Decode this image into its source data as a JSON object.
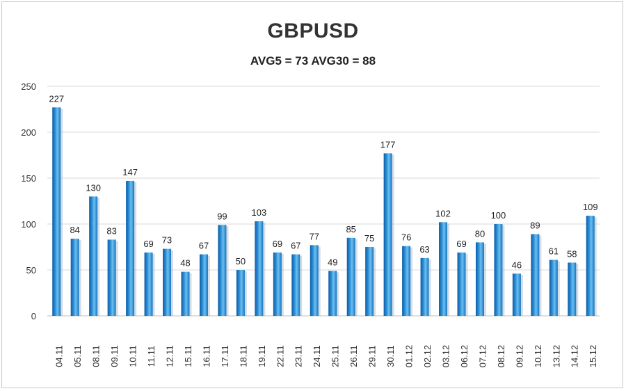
{
  "chart_data": {
    "type": "bar",
    "title": "GBPUSD",
    "subtitle": "AVG5 = 73 AVG30 = 88",
    "categories": [
      "04.11",
      "05.11",
      "08.11",
      "09.11",
      "10.11",
      "11.11",
      "12.11",
      "15.11",
      "16.11",
      "17.11",
      "18.11",
      "19.11",
      "22.11",
      "23.11",
      "24.11",
      "25.11",
      "26.11",
      "29.11",
      "30.11",
      "01.12",
      "02.12",
      "03.12",
      "06.12",
      "07.12",
      "08.12",
      "09.12",
      "10.12",
      "13.12",
      "14.12",
      "15.12"
    ],
    "values": [
      227,
      84,
      130,
      83,
      147,
      69,
      73,
      48,
      67,
      99,
      50,
      103,
      69,
      67,
      77,
      49,
      85,
      75,
      177,
      76,
      63,
      102,
      69,
      80,
      100,
      46,
      89,
      61,
      58,
      109
    ],
    "yticks": [
      0,
      50,
      100,
      150,
      200,
      250
    ],
    "ylim": [
      0,
      250
    ],
    "grid": true,
    "colors": {
      "bar_light": "#7fc8f0",
      "bar_mid": "#2e8fd6",
      "bar_dark": "#0b5da8",
      "grid": "#d9d9d9"
    }
  }
}
